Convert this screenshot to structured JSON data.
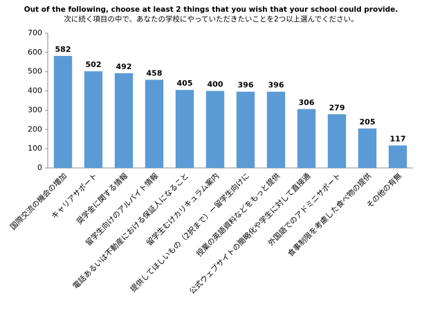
{
  "chart_data": {
    "type": "bar",
    "title": "Out of the following, choose at least 2 things that you wish that your school could provide.",
    "subtitle": "次に続く項目の中で、あなたの学校にやっていただきたいことを2つ以上選んでください。",
    "categories": [
      "国際交流の機会の増加",
      "キャリアサポート",
      "奨学金に関する情報",
      "留学生向けのアルバイト情報",
      "電話あるいは不動産における保証人になること",
      "留学生むけカリキュラム案内",
      "提供してほしいもの（2択まで）ー留学生向けに",
      "授業の英語資料などをもっと提供",
      "公式ウェブサイトの簡略化や学生に対して直接通",
      "外国語でのアドミニサポート",
      "食事制限を考慮した食べ物の提供",
      "その他の有無"
    ],
    "values": [
      582,
      502,
      492,
      458,
      405,
      400,
      396,
      396,
      306,
      279,
      205,
      117
    ],
    "color": "#5b9bd5",
    "ylim": [
      0,
      700
    ],
    "yticks": [
      0,
      100,
      200,
      300,
      400,
      500,
      600,
      700
    ],
    "grid": false
  }
}
